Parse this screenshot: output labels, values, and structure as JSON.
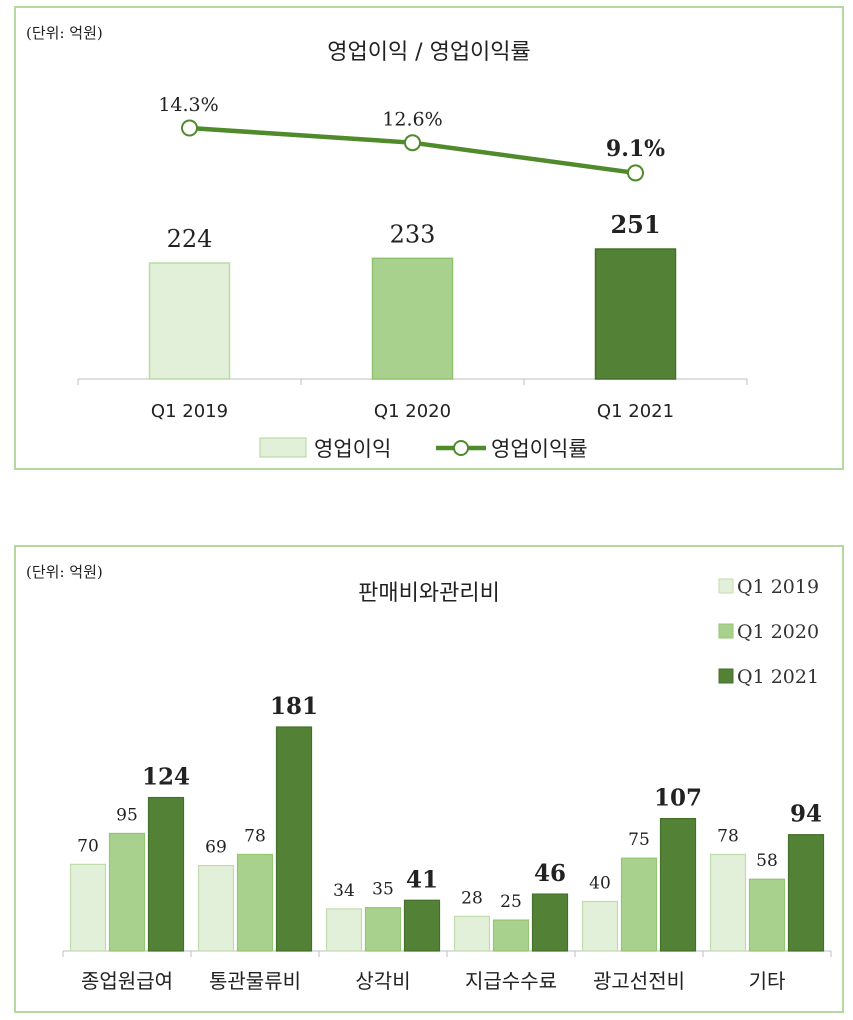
{
  "charts": {
    "c1": {
      "unit_label": "(단위: 억원)",
      "title": "영업이익 / 영업이익률",
      "legend": {
        "bar": "영업이익",
        "line": "영업이익률"
      }
    },
    "c2": {
      "unit_label": "(단위: 억원)",
      "title": "판매비와관리비",
      "legend": [
        "Q1 2019",
        "Q1 2020",
        "Q1 2021"
      ]
    }
  },
  "colors": {
    "q2019": "#e2efd9",
    "q2020": "#a9d18e",
    "q2021": "#538135",
    "line": "#4f8a2b",
    "border": "#b5d7a0"
  },
  "chart_data": [
    {
      "type": "bar",
      "title": "영업이익 / 영업이익률",
      "categories": [
        "Q1 2019",
        "Q1 2020",
        "Q1 2021"
      ],
      "series": [
        {
          "name": "영업이익",
          "type": "bar",
          "values": [
            224,
            233,
            251
          ],
          "labels": [
            "224",
            "233",
            "251"
          ]
        },
        {
          "name": "영업이익률",
          "type": "line",
          "values": [
            14.3,
            12.6,
            9.1
          ],
          "labels": [
            "14.3%",
            "12.6%",
            "9.1%"
          ]
        }
      ],
      "legend_position": "bottom"
    },
    {
      "type": "bar",
      "title": "판매비와관리비",
      "categories": [
        "종업원급여",
        "통관물류비",
        "상각비",
        "지급수수료",
        "광고선전비",
        "기타"
      ],
      "series": [
        {
          "name": "Q1 2019",
          "values": [
            70,
            69,
            34,
            28,
            40,
            78
          ]
        },
        {
          "name": "Q1 2020",
          "values": [
            95,
            78,
            35,
            25,
            75,
            58
          ]
        },
        {
          "name": "Q1 2021",
          "values": [
            124,
            181,
            41,
            46,
            107,
            94
          ]
        }
      ],
      "legend_position": "top-right"
    }
  ]
}
